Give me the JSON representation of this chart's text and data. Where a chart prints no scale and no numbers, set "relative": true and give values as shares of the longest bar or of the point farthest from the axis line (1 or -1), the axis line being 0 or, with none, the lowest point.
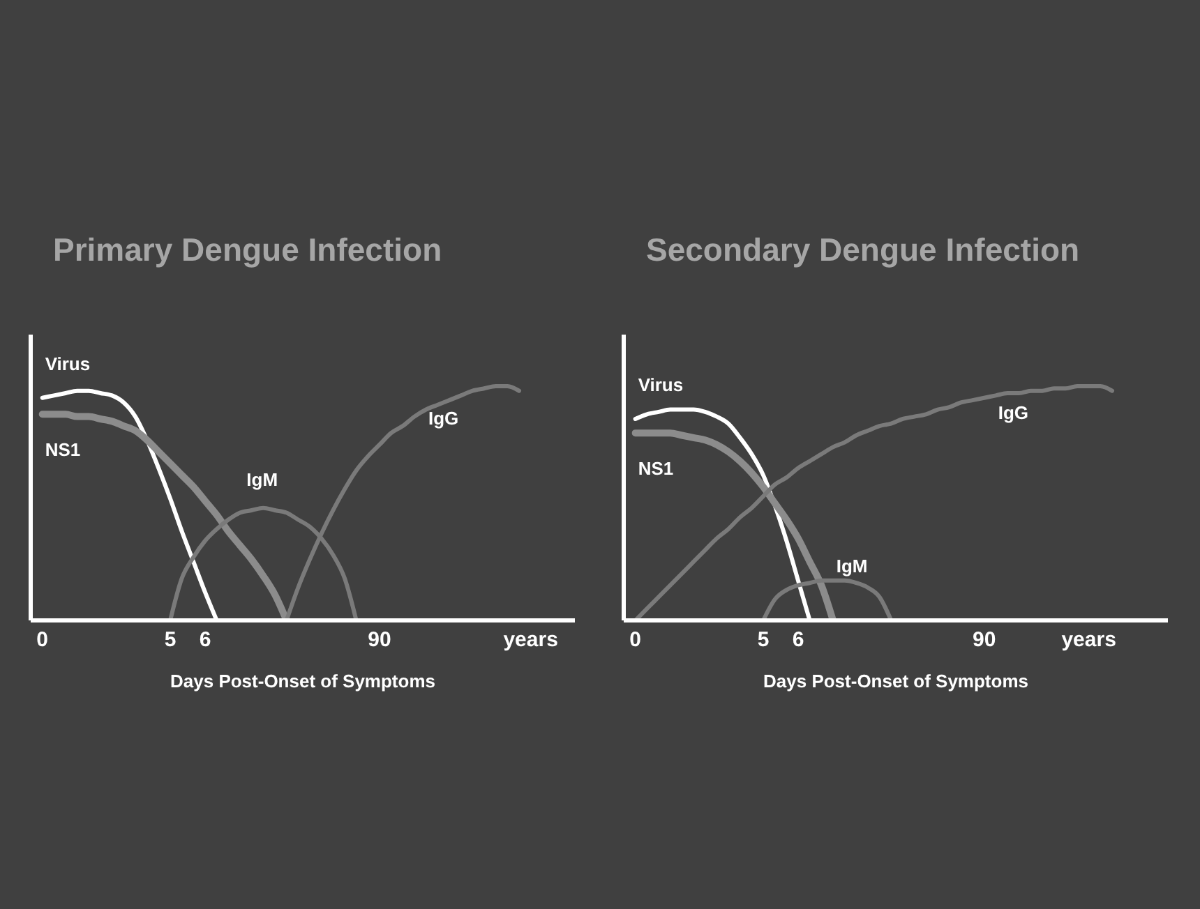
{
  "chart_data": [
    {
      "type": "line",
      "title": "Primary Dengue Infection",
      "xlabel": "Days Post-Onset of Symptoms",
      "relative": true,
      "tick_labels": "x",
      "marker": "none",
      "line_style": "solid",
      "categories": [
        "0",
        null,
        null,
        null,
        null,
        null,
        null,
        null,
        null,
        null,
        null,
        "5",
        null,
        null,
        "6",
        null,
        null,
        null,
        null,
        null,
        null,
        null,
        null,
        null,
        null,
        null,
        null,
        null,
        null,
        "90",
        null,
        null,
        null,
        null,
        null,
        null,
        null,
        null,
        null,
        null,
        null,
        null,
        "years",
        null,
        null,
        null
      ],
      "series": [
        {
          "name": "Virus",
          "color": "#ffffff",
          "values": [
            0.95,
            0.96,
            0.97,
            0.98,
            0.98,
            0.97,
            0.96,
            0.93,
            0.87,
            0.77,
            0.65,
            0.52,
            0.38,
            0.25,
            0.12,
            0,
            null,
            null,
            null,
            null,
            null,
            null,
            null,
            null,
            null,
            null,
            null,
            null,
            null,
            null,
            null,
            null,
            null,
            null,
            null,
            null,
            null,
            null,
            null,
            null,
            null,
            null,
            null,
            null,
            null,
            null
          ]
        },
        {
          "name": "NS1",
          "color": "#8c8c8c",
          "values": [
            0.88,
            0.88,
            0.88,
            0.87,
            0.87,
            0.86,
            0.85,
            0.83,
            0.81,
            0.77,
            0.72,
            0.67,
            0.62,
            0.57,
            0.51,
            0.45,
            0.38,
            0.32,
            0.26,
            0.19,
            0.11,
            0,
            null,
            null,
            null,
            null,
            null,
            null,
            null,
            null,
            null,
            null,
            null,
            null,
            null,
            null,
            null,
            null,
            null,
            null,
            null,
            null,
            null,
            null,
            null,
            null
          ]
        },
        {
          "name": "IgM",
          "color": "#7a7a7a",
          "values": [
            null,
            null,
            null,
            null,
            null,
            null,
            null,
            null,
            null,
            null,
            null,
            0,
            0.18,
            0.27,
            0.34,
            0.39,
            0.43,
            0.46,
            0.47,
            0.48,
            0.47,
            0.46,
            0.43,
            0.4,
            0.35,
            0.28,
            0.18,
            0,
            null,
            null,
            null,
            null,
            null,
            null,
            null,
            null,
            null,
            null,
            null,
            null,
            null,
            null,
            null,
            null,
            null,
            null
          ]
        },
        {
          "name": "IgG",
          "color": "#7a7a7a",
          "values": [
            null,
            null,
            null,
            null,
            null,
            null,
            null,
            null,
            null,
            null,
            null,
            null,
            null,
            null,
            null,
            null,
            null,
            null,
            null,
            null,
            null,
            0,
            0.14,
            0.26,
            0.37,
            0.47,
            0.56,
            0.64,
            0.7,
            0.75,
            0.8,
            0.83,
            0.87,
            0.9,
            0.92,
            0.94,
            0.96,
            0.98,
            0.99,
            1,
            1,
            0.98,
            null,
            null,
            null,
            null
          ]
        }
      ]
    },
    {
      "type": "line",
      "title": "Secondary Dengue Infection",
      "xlabel": "Days Post-Onset of Symptoms",
      "relative": true,
      "tick_labels": "x",
      "marker": "none",
      "line_style": "solid",
      "categories": [
        "0",
        null,
        null,
        null,
        null,
        null,
        null,
        null,
        null,
        null,
        null,
        "5",
        null,
        null,
        "6",
        null,
        null,
        null,
        null,
        null,
        null,
        null,
        null,
        null,
        null,
        null,
        null,
        null,
        null,
        null,
        "90",
        null,
        null,
        null,
        null,
        null,
        null,
        null,
        null,
        "years",
        null,
        null,
        null,
        null,
        null,
        null
      ],
      "series": [
        {
          "name": "Virus",
          "color": "#ffffff",
          "values": [
            0.86,
            0.88,
            0.89,
            0.9,
            0.9,
            0.9,
            0.89,
            0.87,
            0.84,
            0.78,
            0.71,
            0.62,
            0.49,
            0.34,
            0.17,
            0,
            null,
            null,
            null,
            null,
            null,
            null,
            null,
            null,
            null,
            null,
            null,
            null,
            null,
            null,
            null,
            null,
            null,
            null,
            null,
            null,
            null,
            null,
            null,
            null,
            null,
            null,
            null,
            null,
            null,
            null
          ]
        },
        {
          "name": "NS1",
          "color": "#8c8c8c",
          "values": [
            0.8,
            0.8,
            0.8,
            0.8,
            0.79,
            0.78,
            0.77,
            0.75,
            0.72,
            0.68,
            0.63,
            0.57,
            0.5,
            0.43,
            0.35,
            0.25,
            0.15,
            0,
            null,
            null,
            null,
            null,
            null,
            null,
            null,
            null,
            null,
            null,
            null,
            null,
            null,
            null,
            null,
            null,
            null,
            null,
            null,
            null,
            null,
            null,
            null,
            null,
            null,
            null,
            null,
            null
          ]
        },
        {
          "name": "IgM",
          "color": "#7a7a7a",
          "values": [
            null,
            null,
            null,
            null,
            null,
            null,
            null,
            null,
            null,
            null,
            null,
            0,
            0.09,
            0.13,
            0.15,
            0.16,
            0.17,
            0.17,
            0.17,
            0.16,
            0.14,
            0.1,
            0,
            null,
            null,
            null,
            null,
            null,
            null,
            null,
            null,
            null,
            null,
            null,
            null,
            null,
            null,
            null,
            null,
            null,
            null,
            null,
            null,
            null,
            null,
            null
          ]
        },
        {
          "name": "IgG",
          "color": "#7a7a7a",
          "values": [
            0,
            0.05,
            0.1,
            0.15,
            0.2,
            0.25,
            0.3,
            0.35,
            0.39,
            0.44,
            0.48,
            0.53,
            0.58,
            0.61,
            0.65,
            0.68,
            0.71,
            0.74,
            0.76,
            0.79,
            0.81,
            0.83,
            0.84,
            0.86,
            0.87,
            0.88,
            0.9,
            0.91,
            0.93,
            0.94,
            0.95,
            0.96,
            0.97,
            0.97,
            0.98,
            0.98,
            0.99,
            0.99,
            1,
            1,
            1,
            0.98,
            null,
            null,
            null,
            null
          ]
        }
      ]
    }
  ]
}
